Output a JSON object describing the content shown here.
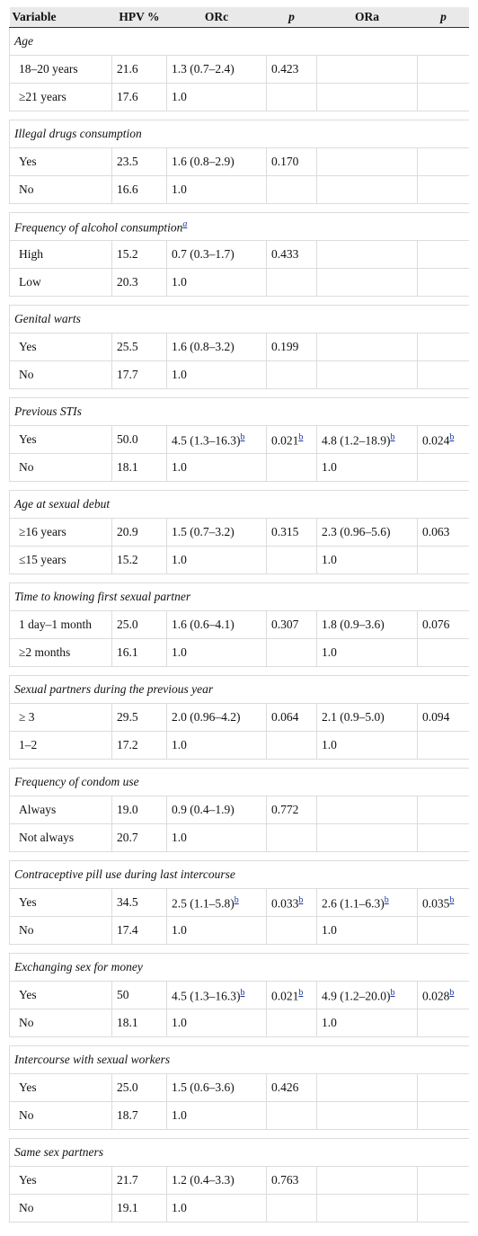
{
  "header": [
    "Variable",
    "HPV %",
    "ORc",
    "p",
    "ORa",
    "p"
  ],
  "groups": [
    {
      "title": "Age",
      "rows": [
        [
          "18–20 years",
          "21.6",
          "1.3 (0.7–2.4)",
          "0.423",
          null,
          null
        ],
        [
          "≥21 years",
          "17.6",
          "1.0",
          null,
          null,
          null
        ]
      ]
    },
    {
      "title": "Illegal drugs consumption",
      "rows": [
        [
          "Yes",
          "23.5",
          "1.6 (0.8–2.9)",
          "0.170",
          null,
          null
        ],
        [
          "No",
          "16.6",
          "1.0",
          null,
          null,
          null
        ]
      ]
    },
    {
      "title": "Frequency of alcohol consumption",
      "title_sup": "a",
      "rows": [
        [
          "High",
          "15.2",
          "0.7 (0.3–1.7)",
          "0.433",
          null,
          null
        ],
        [
          "Low",
          "20.3",
          "1.0",
          null,
          null,
          null
        ]
      ]
    },
    {
      "title": "Genital warts",
      "rows": [
        [
          "Yes",
          "25.5",
          "1.6 (0.8–3.2)",
          "0.199",
          null,
          null
        ],
        [
          "No",
          "17.7",
          "1.0",
          null,
          null,
          null
        ]
      ]
    },
    {
      "title": "Previous STIs",
      "rows": [
        [
          "Yes",
          "50.0",
          {
            "text": "4.5 (1.3–16.3)",
            "sup": "b"
          },
          {
            "text": "0.021",
            "sup": "b"
          },
          {
            "text": "4.8 (1.2–18.9)",
            "sup": "b"
          },
          {
            "text": "0.024",
            "sup": "b"
          }
        ],
        [
          "No",
          "18.1",
          "1.0",
          null,
          "1.0",
          null
        ]
      ]
    },
    {
      "title": "Age at sexual debut",
      "rows": [
        [
          "≥16 years",
          "20.9",
          "1.5 (0.7–3.2)",
          "0.315",
          "2.3 (0.96–5.6)",
          "0.063"
        ],
        [
          "≤15 years",
          "15.2",
          "1.0",
          null,
          "1.0",
          null
        ]
      ]
    },
    {
      "title": "Time to knowing first sexual partner",
      "rows": [
        [
          "1 day–1 month",
          "25.0",
          "1.6 (0.6–4.1)",
          "0.307",
          "1.8 (0.9–3.6)",
          "0.076"
        ],
        [
          "≥2 months",
          "16.1",
          "1.0",
          null,
          "1.0",
          null
        ]
      ]
    },
    {
      "title": "Sexual partners during the previous year",
      "rows": [
        [
          "≥ 3",
          "29.5",
          "2.0 (0.96–4.2)",
          "0.064",
          "2.1 (0.9–5.0)",
          "0.094"
        ],
        [
          "1–2",
          "17.2",
          "1.0",
          null,
          "1.0",
          null
        ]
      ]
    },
    {
      "title": "Frequency of condom use",
      "rows": [
        [
          "Always",
          "19.0",
          "0.9 (0.4–1.9)",
          "0.772",
          null,
          null
        ],
        [
          "Not always",
          "20.7",
          "1.0",
          null,
          null,
          null
        ]
      ]
    },
    {
      "title": "Contraceptive pill use during last intercourse",
      "rows": [
        [
          "Yes",
          "34.5",
          {
            "text": "2.5 (1.1–5.8)",
            "sup": "b"
          },
          {
            "text": "0.033",
            "sup": "b"
          },
          {
            "text": "2.6 (1.1–6.3)",
            "sup": "b"
          },
          {
            "text": "0.035",
            "sup": "b"
          }
        ],
        [
          "No",
          "17.4",
          "1.0",
          null,
          "1.0",
          null
        ]
      ]
    },
    {
      "title": "Exchanging sex for money",
      "rows": [
        [
          "Yes",
          "50",
          {
            "text": "4.5 (1.3–16.3)",
            "sup": "b"
          },
          {
            "text": "0.021",
            "sup": "b"
          },
          {
            "text": "4.9 (1.2–20.0)",
            "sup": "b"
          },
          {
            "text": "0.028",
            "sup": "b"
          }
        ],
        [
          "No",
          "18.1",
          "1.0",
          null,
          "1.0",
          null
        ]
      ]
    },
    {
      "title": "Intercourse with sexual workers",
      "rows": [
        [
          "Yes",
          "25.0",
          "1.5 (0.6–3.6)",
          "0.426",
          null,
          null
        ],
        [
          "No",
          "18.7",
          "1.0",
          null,
          null,
          null
        ]
      ]
    },
    {
      "title": "Same sex partners",
      "rows": [
        [
          "Yes",
          "21.7",
          "1.2 (0.4–3.3)",
          "0.763",
          null,
          null
        ],
        [
          "No",
          "19.1",
          "1.0",
          null,
          null,
          null
        ]
      ]
    }
  ]
}
